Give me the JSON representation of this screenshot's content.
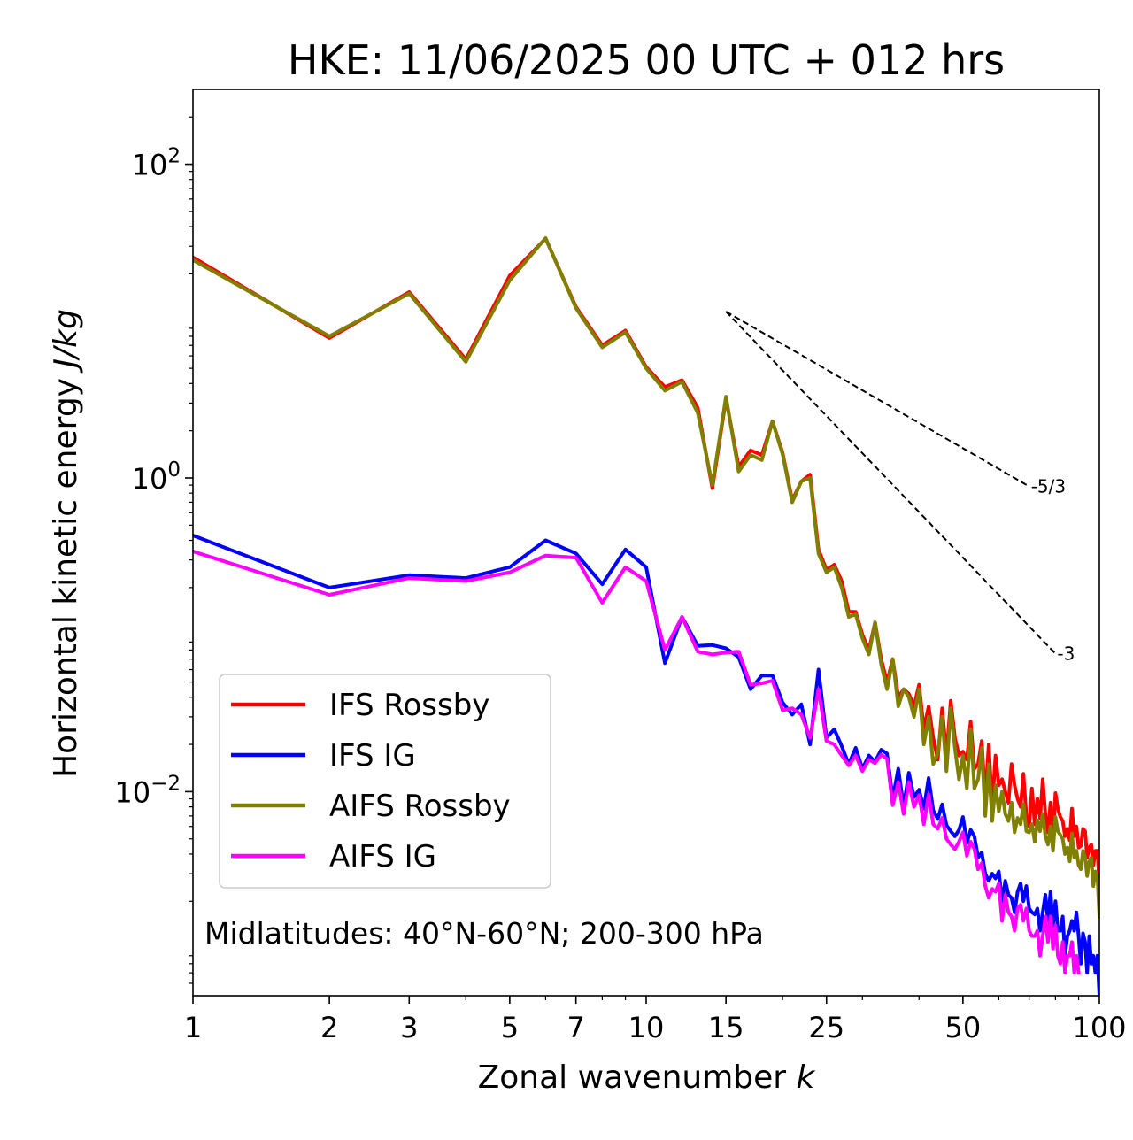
{
  "chart_data": {
    "type": "line",
    "title": "HKE: 11/06/2025 00 UTC + 012 hrs",
    "xlabel": "Zonal wavenumber",
    "xlabel_var": "k",
    "ylabel": "Horizontal kinetic energy",
    "ylabel_units": "J/kg",
    "xscale": "log",
    "yscale": "log",
    "xlim": [
      1,
      100
    ],
    "ylim": [
      0.0005,
      300
    ],
    "x_ticks": [
      1,
      2,
      3,
      5,
      7,
      10,
      15,
      25,
      50,
      100
    ],
    "x_tick_labels": [
      "1",
      "2",
      "3",
      "5",
      "7",
      "10",
      "15",
      "25",
      "50",
      "100"
    ],
    "y_ticks": [
      {
        "value": 100,
        "base": "10",
        "exp": "2"
      },
      {
        "value": 1,
        "base": "10",
        "exp": "0"
      },
      {
        "value": 0.01,
        "base": "10",
        "exp": "−2"
      }
    ],
    "annotation": "Midlatitudes: 40°N-60°N; 200-300 hPa",
    "legend_position": "lower-left",
    "reference_slopes": [
      {
        "label": "-5/3",
        "slope": -1.6667,
        "x_start": 15,
        "y_start": 11.5,
        "x_end": 70
      },
      {
        "label": "-3",
        "slope": -3,
        "x_start": 15,
        "y_start": 11.5,
        "x_end": 80
      }
    ],
    "series": [
      {
        "name": "IFS Rossby",
        "color": "#ff0000",
        "x": [
          1,
          2,
          3,
          4,
          5,
          6,
          7,
          8,
          9,
          10,
          11,
          12,
          13,
          14,
          15,
          16,
          17,
          18,
          19,
          20,
          21,
          22,
          23,
          24,
          25,
          26,
          27,
          28,
          29,
          30,
          31,
          32,
          33,
          34,
          35,
          36,
          37,
          38,
          39,
          40,
          41,
          42,
          43,
          44,
          45,
          46,
          47,
          48,
          49,
          50,
          51,
          52,
          53,
          54,
          55,
          56,
          57,
          58,
          59,
          60,
          61,
          62,
          63,
          64,
          65,
          66,
          67,
          68,
          69,
          70,
          71,
          72,
          73,
          74,
          75,
          76,
          77,
          78,
          79,
          80,
          81,
          82,
          83,
          84,
          85,
          86,
          87,
          88,
          89,
          90,
          91,
          92,
          93,
          94,
          95,
          96,
          97,
          98,
          99,
          100
        ],
        "values": [
          25.5,
          7.8,
          15.3,
          5.7,
          19.5,
          33.6,
          12.3,
          7,
          8.7,
          5.1,
          3.8,
          4.2,
          2.8,
          0.86,
          3.2,
          1.18,
          1.5,
          1.4,
          2.3,
          1.45,
          0.72,
          0.95,
          1.05,
          0.35,
          0.26,
          0.28,
          0.22,
          0.14,
          0.14,
          0.1,
          0.08,
          0.12,
          0.07,
          0.05,
          0.07,
          0.04,
          0.045,
          0.042,
          0.035,
          0.048,
          0.025,
          0.035,
          0.022,
          0.016,
          0.034,
          0.017,
          0.038,
          0.022,
          0.017,
          0.018,
          0.016,
          0.028,
          0.014,
          0.015,
          0.021,
          0.009,
          0.02,
          0.008,
          0.017,
          0.011,
          0.012,
          0.01,
          0.0085,
          0.015,
          0.011,
          0.009,
          0.008,
          0.013,
          0.007,
          0.006,
          0.0105,
          0.0062,
          0.009,
          0.0068,
          0.012,
          0.0072,
          0.0055,
          0.0085,
          0.0052,
          0.0098,
          0.0078,
          0.0069,
          0.0065,
          0.0052,
          0.0058,
          0.0049,
          0.0078,
          0.0052,
          0.006,
          0.0044,
          0.0045,
          0.0058,
          0.0056,
          0.0038,
          0.0044,
          0.0046,
          0.0034,
          0.0042,
          0.0042,
          0.0025
        ]
      },
      {
        "name": "IFS IG",
        "color": "#0000ff",
        "x": [
          1,
          2,
          3,
          4,
          5,
          6,
          7,
          8,
          9,
          10,
          11,
          12,
          13,
          14,
          15,
          16,
          17,
          18,
          19,
          20,
          21,
          22,
          23,
          24,
          25,
          26,
          27,
          28,
          29,
          30,
          31,
          32,
          33,
          34,
          35,
          36,
          37,
          38,
          39,
          40,
          41,
          42,
          43,
          44,
          45,
          46,
          47,
          48,
          49,
          50,
          51,
          52,
          53,
          54,
          55,
          56,
          57,
          58,
          59,
          60,
          61,
          62,
          63,
          64,
          65,
          66,
          67,
          68,
          69,
          70,
          71,
          72,
          73,
          74,
          75,
          76,
          77,
          78,
          79,
          80,
          81,
          82,
          83,
          84,
          85,
          86,
          87,
          88,
          89,
          90,
          91,
          92,
          93,
          94,
          95,
          96,
          97,
          98,
          99,
          100
        ],
        "values": [
          0.43,
          0.2,
          0.24,
          0.23,
          0.27,
          0.4,
          0.33,
          0.21,
          0.35,
          0.27,
          0.066,
          0.13,
          0.085,
          0.086,
          0.082,
          0.072,
          0.045,
          0.055,
          0.055,
          0.037,
          0.031,
          0.036,
          0.02,
          0.06,
          0.022,
          0.025,
          0.0195,
          0.015,
          0.019,
          0.014,
          0.017,
          0.0155,
          0.0185,
          0.0175,
          0.009,
          0.014,
          0.008,
          0.0132,
          0.0092,
          0.0103,
          0.0078,
          0.0122,
          0.0076,
          0.0067,
          0.0083,
          0.0061,
          0.0056,
          0.0052,
          0.0057,
          0.0069,
          0.0047,
          0.0057,
          0.0052,
          0.0038,
          0.0041,
          0.003,
          0.0027,
          0.003,
          0.0028,
          0.0031,
          0.002,
          0.0027,
          0.0022,
          0.0021,
          0.0017,
          0.0023,
          0.0026,
          0.002,
          0.0025,
          0.0018,
          0.0017,
          0.00165,
          0.0018,
          0.0013,
          0.0017,
          0.0022,
          0.0015,
          0.0023,
          0.0014,
          0.002,
          0.0013,
          0.0013,
          0.0016,
          0.0009,
          0.0012,
          0.0013,
          0.0015,
          0.0013,
          0.0017,
          0.0012,
          0.0008,
          0.00125,
          0.0011,
          0.0007,
          0.0012,
          0.0008,
          0.0009,
          0.0007,
          0.0009,
          0.0005
        ]
      },
      {
        "name": "AIFS Rossby",
        "color": "#808000",
        "x": [
          1,
          2,
          3,
          4,
          5,
          6,
          7,
          8,
          9,
          10,
          11,
          12,
          13,
          14,
          15,
          16,
          17,
          18,
          19,
          20,
          21,
          22,
          23,
          24,
          25,
          26,
          27,
          28,
          29,
          30,
          31,
          32,
          33,
          34,
          35,
          36,
          37,
          38,
          39,
          40,
          41,
          42,
          43,
          44,
          45,
          46,
          47,
          48,
          49,
          50,
          51,
          52,
          53,
          54,
          55,
          56,
          57,
          58,
          59,
          60,
          61,
          62,
          63,
          64,
          65,
          66,
          67,
          68,
          69,
          70,
          71,
          72,
          73,
          74,
          75,
          76,
          77,
          78,
          79,
          80,
          81,
          82,
          83,
          84,
          85,
          86,
          87,
          88,
          89,
          90,
          91,
          92,
          93,
          94,
          95,
          96,
          97,
          98,
          99,
          100
        ],
        "values": [
          24.5,
          8,
          15,
          5.5,
          18.2,
          33.8,
          12.1,
          6.8,
          8.5,
          5.0,
          3.6,
          4.1,
          2.6,
          0.9,
          3.3,
          1.1,
          1.4,
          1.3,
          2.3,
          1.42,
          0.7,
          0.95,
          1.0,
          0.33,
          0.25,
          0.27,
          0.2,
          0.13,
          0.135,
          0.095,
          0.075,
          0.12,
          0.065,
          0.045,
          0.07,
          0.035,
          0.045,
          0.04,
          0.03,
          0.045,
          0.02,
          0.03,
          0.015,
          0.0175,
          0.03,
          0.0135,
          0.034,
          0.019,
          0.012,
          0.017,
          0.0105,
          0.025,
          0.0105,
          0.012,
          0.019,
          0.007,
          0.015,
          0.0065,
          0.011,
          0.0075,
          0.01,
          0.0072,
          0.0065,
          0.0085,
          0.0055,
          0.0068,
          0.0062,
          0.0083,
          0.0056,
          0.0055,
          0.0062,
          0.0048,
          0.0066,
          0.0056,
          0.0072,
          0.0052,
          0.0046,
          0.006,
          0.0042,
          0.0069,
          0.0056,
          0.0053,
          0.005,
          0.004,
          0.0044,
          0.0036,
          0.0054,
          0.0038,
          0.0042,
          0.0034,
          0.0032,
          0.0042,
          0.0038,
          0.0029,
          0.0036,
          0.0038,
          0.0025,
          0.0031,
          0.0029,
          0.0016
        ]
      },
      {
        "name": "AIFS IG",
        "color": "#ff00ff",
        "x": [
          1,
          2,
          3,
          4,
          5,
          6,
          7,
          8,
          9,
          10,
          11,
          12,
          13,
          14,
          15,
          16,
          17,
          18,
          19,
          20,
          21,
          22,
          23,
          24,
          25,
          26,
          27,
          28,
          29,
          30,
          31,
          32,
          33,
          34,
          35,
          36,
          37,
          38,
          39,
          40,
          41,
          42,
          43,
          44,
          45,
          46,
          47,
          48,
          49,
          50,
          51,
          52,
          53,
          54,
          55,
          56,
          57,
          58,
          59,
          60,
          61,
          62,
          63,
          64,
          65,
          66,
          67,
          68,
          69,
          70,
          71,
          72,
          73,
          74,
          75,
          76,
          77,
          78,
          79,
          80,
          81,
          82,
          83,
          84,
          85,
          86,
          87,
          88,
          89,
          90
        ],
        "values": [
          0.34,
          0.18,
          0.23,
          0.22,
          0.25,
          0.32,
          0.31,
          0.16,
          0.27,
          0.22,
          0.08,
          0.13,
          0.078,
          0.075,
          0.077,
          0.078,
          0.048,
          0.049,
          0.051,
          0.033,
          0.034,
          0.031,
          0.022,
          0.045,
          0.021,
          0.02,
          0.017,
          0.0147,
          0.017,
          0.0135,
          0.016,
          0.0152,
          0.0172,
          0.0162,
          0.0082,
          0.0115,
          0.0072,
          0.0115,
          0.008,
          0.0095,
          0.0062,
          0.0096,
          0.0062,
          0.0058,
          0.0068,
          0.005,
          0.0046,
          0.0043,
          0.0048,
          0.0055,
          0.0039,
          0.0048,
          0.0043,
          0.0032,
          0.0035,
          0.0025,
          0.0021,
          0.0024,
          0.0023,
          0.0026,
          0.0015,
          0.0022,
          0.0017,
          0.0016,
          0.0013,
          0.0018,
          0.0019,
          0.0015,
          0.0018,
          0.0013,
          0.0012,
          0.0012,
          0.0013,
          0.0009,
          0.0012,
          0.0016,
          0.0011,
          0.0016,
          0.001,
          0.0014,
          0.0009,
          0.0008,
          0.0011,
          0.0007,
          0.0009,
          0.0009,
          0.0011,
          0.0007,
          0.0009,
          0.0007
        ]
      }
    ]
  }
}
